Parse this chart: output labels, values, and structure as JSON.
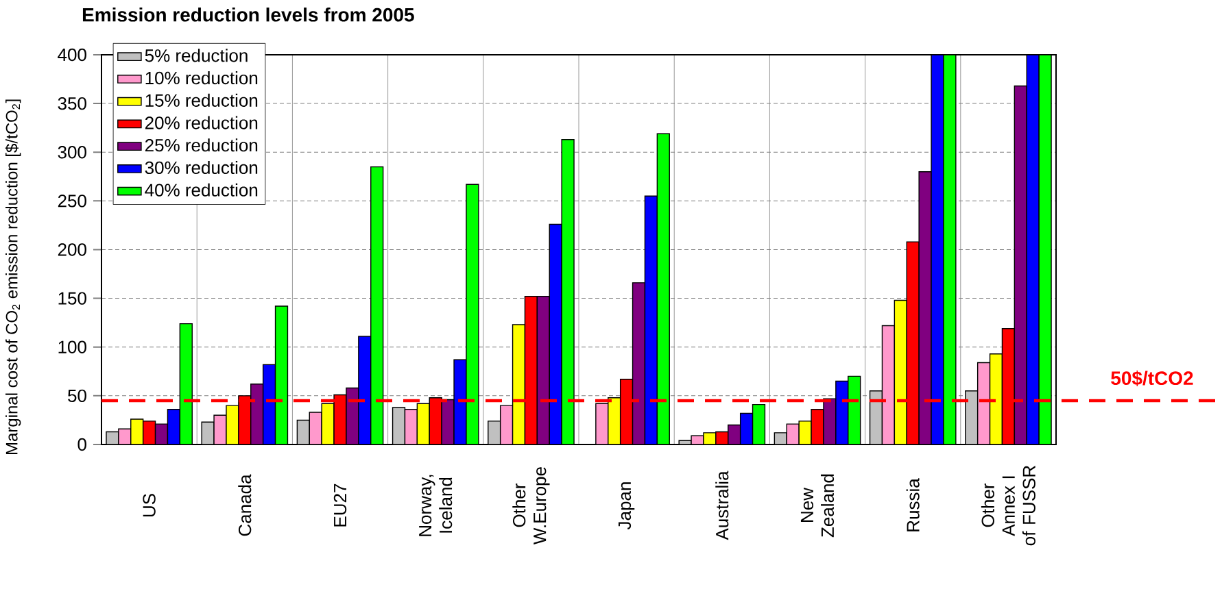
{
  "chart_data": {
    "type": "bar",
    "title": "Emission reduction levels from 2005",
    "ylabel": "Marginal cost of CO$_{2}$ emission reduction [$/tCO$_{2}$]",
    "categories": [
      "US",
      "Canada",
      "EU27",
      "Norway, Iceland",
      "Other W.Europe",
      "Japan",
      "Australia",
      "New Zealand",
      "Russia",
      "Other Annex I of FUSSR"
    ],
    "series": [
      {
        "name": "5% reduction",
        "color": "#c0c0c0",
        "values": [
          13,
          23,
          25,
          38,
          24,
          null,
          4,
          12,
          55,
          55
        ]
      },
      {
        "name": "10% reduction",
        "color": "#ff99cc",
        "values": [
          16,
          30,
          33,
          36,
          40,
          42,
          9,
          21,
          122,
          84
        ]
      },
      {
        "name": "15% reduction",
        "color": "#ffff00",
        "values": [
          26,
          40,
          42,
          42,
          123,
          48,
          12,
          24,
          148,
          93
        ]
      },
      {
        "name": "20% reduction",
        "color": "#ff0000",
        "values": [
          24,
          50,
          51,
          48,
          152,
          67,
          13,
          36,
          208,
          119
        ]
      },
      {
        "name": "25% reduction",
        "color": "#800080",
        "values": [
          21,
          62,
          58,
          46,
          152,
          166,
          20,
          47,
          280,
          368
        ]
      },
      {
        "name": "30% reduction",
        "color": "#0000ff",
        "values": [
          36,
          82,
          111,
          87,
          226,
          255,
          32,
          65,
          400,
          400
        ]
      },
      {
        "name": "40% reduction",
        "color": "#00ff00",
        "values": [
          124,
          142,
          285,
          267,
          313,
          319,
          41,
          70,
          400,
          400
        ]
      }
    ],
    "ylim": [
      0,
      400
    ],
    "yticks": [
      0,
      50,
      100,
      150,
      200,
      250,
      300,
      350,
      400
    ],
    "grid": true,
    "legend": "top left",
    "ref_lines": [
      {
        "axis": "y",
        "value": 45,
        "label": "50$/tCO2",
        "color": "#ff0000",
        "line_style": "dashed"
      }
    ]
  }
}
